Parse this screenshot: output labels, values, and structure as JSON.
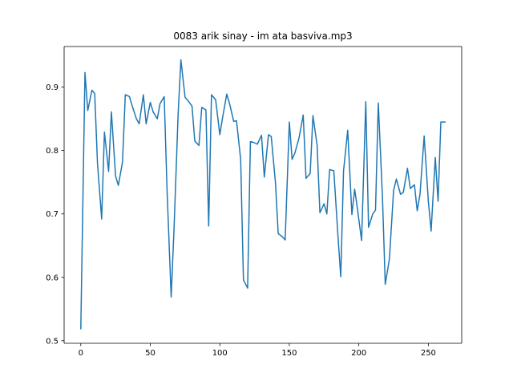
{
  "chart_data": {
    "type": "line",
    "title": "0083 arik sinay - im ata basviva.mp3",
    "xlabel": "",
    "ylabel": "",
    "xlim": [
      -12,
      274
    ],
    "ylim": [
      0.496,
      0.964
    ],
    "xticks": [
      0,
      50,
      100,
      150,
      200,
      250
    ],
    "yticks": [
      0.5,
      0.6,
      0.7,
      0.8,
      0.9
    ],
    "xtick_labels": [
      "0",
      "50",
      "100",
      "150",
      "200",
      "250"
    ],
    "ytick_labels": [
      "0.5",
      "0.6",
      "0.7",
      "0.8",
      "0.9"
    ],
    "grid": false,
    "legend": "none",
    "series": [
      {
        "color": "#1f77b4",
        "x": [
          0,
          3,
          5,
          8,
          10,
          12,
          15,
          17,
          20,
          22,
          25,
          27,
          30,
          32,
          35,
          37,
          40,
          42,
          45,
          47,
          50,
          52,
          55,
          57,
          60,
          62,
          65,
          67,
          70,
          72,
          75,
          77,
          80,
          82,
          85,
          87,
          90,
          92,
          94,
          97,
          100,
          102,
          105,
          107,
          110,
          112,
          115,
          117,
          120,
          122,
          124,
          127,
          130,
          132,
          135,
          137,
          140,
          142,
          145,
          147,
          150,
          152,
          154,
          157,
          160,
          162,
          165,
          167,
          170,
          172,
          175,
          177,
          179,
          182,
          185,
          187,
          189,
          192,
          195,
          197,
          199,
          202,
          205,
          207,
          210,
          212,
          214,
          217,
          219,
          222,
          225,
          227,
          230,
          232,
          235,
          237,
          240,
          242,
          244,
          247,
          250,
          252,
          255,
          257,
          259,
          262
        ],
        "y": [
          0.519,
          0.923,
          0.863,
          0.895,
          0.89,
          0.78,
          0.692,
          0.829,
          0.767,
          0.861,
          0.76,
          0.745,
          0.782,
          0.888,
          0.885,
          0.87,
          0.85,
          0.842,
          0.888,
          0.842,
          0.876,
          0.861,
          0.85,
          0.874,
          0.885,
          0.74,
          0.569,
          0.673,
          0.857,
          0.943,
          0.884,
          0.879,
          0.87,
          0.815,
          0.808,
          0.868,
          0.864,
          0.681,
          0.888,
          0.88,
          0.825,
          0.852,
          0.889,
          0.874,
          0.846,
          0.847,
          0.786,
          0.596,
          0.583,
          0.814,
          0.813,
          0.81,
          0.824,
          0.758,
          0.825,
          0.822,
          0.75,
          0.669,
          0.664,
          0.659,
          0.845,
          0.786,
          0.796,
          0.82,
          0.856,
          0.756,
          0.764,
          0.855,
          0.808,
          0.702,
          0.716,
          0.7,
          0.77,
          0.768,
          0.665,
          0.601,
          0.768,
          0.832,
          0.699,
          0.739,
          0.708,
          0.658,
          0.877,
          0.679,
          0.7,
          0.706,
          0.875,
          0.726,
          0.589,
          0.629,
          0.737,
          0.755,
          0.731,
          0.734,
          0.772,
          0.74,
          0.746,
          0.705,
          0.731,
          0.823,
          0.72,
          0.673,
          0.789,
          0.72,
          0.845,
          0.845
        ]
      }
    ]
  }
}
